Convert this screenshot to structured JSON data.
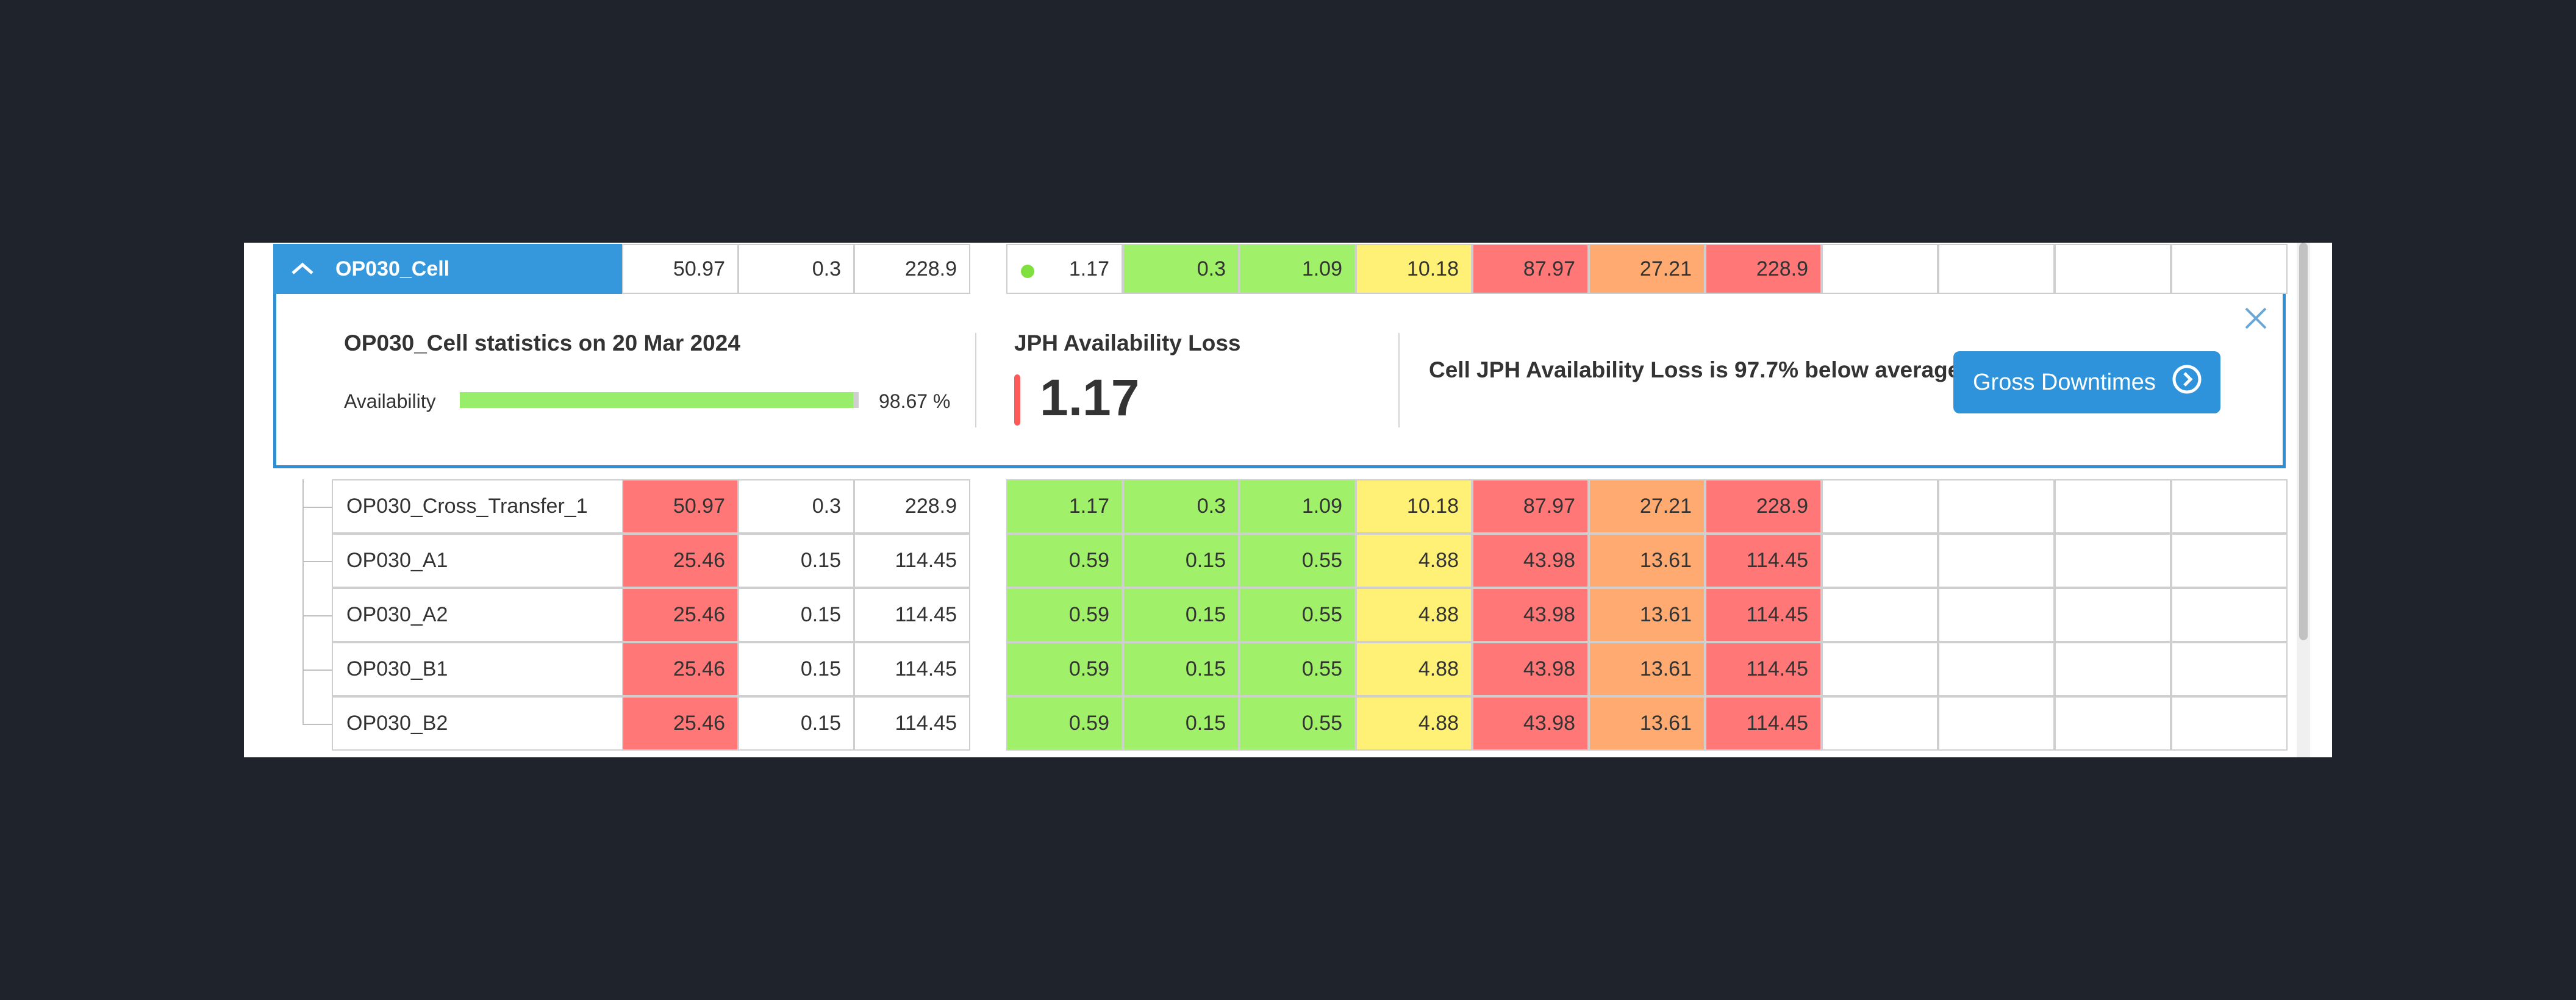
{
  "colors": {
    "green": "#a0f06a",
    "yellow": "#fff176",
    "red": "#ff7777",
    "orange": "#ffaa70",
    "accent": "#3598dc"
  },
  "header_row": {
    "name": "OP030_Cell",
    "left": [
      "50.97",
      "0.3",
      "228.9"
    ],
    "right": [
      {
        "v": "1.17",
        "c": "white",
        "dot": true
      },
      {
        "v": "0.3",
        "c": "green"
      },
      {
        "v": "1.09",
        "c": "green"
      },
      {
        "v": "10.18",
        "c": "yellow"
      },
      {
        "v": "87.97",
        "c": "red"
      },
      {
        "v": "27.21",
        "c": "orange"
      },
      {
        "v": "228.9",
        "c": "red"
      },
      {
        "v": "",
        "c": "white"
      },
      {
        "v": "",
        "c": "white"
      },
      {
        "v": "",
        "c": "white"
      },
      {
        "v": "",
        "c": "white"
      }
    ]
  },
  "stats": {
    "title": "OP030_Cell statistics on 20 Mar 2024",
    "availability_label": "Availability",
    "availability_value": "98.67 %",
    "availability_fraction": 0.9867,
    "jph_title": "JPH Availability Loss",
    "jph_value": "1.17",
    "cell_loss_text": "Cell JPH Availability Loss is 97.7% below average",
    "gross_button": "Gross Downtimes"
  },
  "rows": [
    {
      "name": "OP030_Cross_Transfer_1",
      "left": [
        {
          "v": "50.97",
          "c": "red"
        },
        {
          "v": "0.3",
          "c": "white"
        },
        {
          "v": "228.9",
          "c": "white"
        }
      ],
      "right": [
        {
          "v": "1.17",
          "c": "green"
        },
        {
          "v": "0.3",
          "c": "green"
        },
        {
          "v": "1.09",
          "c": "green"
        },
        {
          "v": "10.18",
          "c": "yellow"
        },
        {
          "v": "87.97",
          "c": "red"
        },
        {
          "v": "27.21",
          "c": "orange"
        },
        {
          "v": "228.9",
          "c": "red"
        },
        {
          "v": "",
          "c": "white"
        },
        {
          "v": "",
          "c": "white"
        },
        {
          "v": "",
          "c": "white"
        },
        {
          "v": "",
          "c": "white"
        }
      ]
    },
    {
      "name": "OP030_A1",
      "left": [
        {
          "v": "25.46",
          "c": "red"
        },
        {
          "v": "0.15",
          "c": "white"
        },
        {
          "v": "114.45",
          "c": "white"
        }
      ],
      "right": [
        {
          "v": "0.59",
          "c": "green"
        },
        {
          "v": "0.15",
          "c": "green"
        },
        {
          "v": "0.55",
          "c": "green"
        },
        {
          "v": "4.88",
          "c": "yellow"
        },
        {
          "v": "43.98",
          "c": "red"
        },
        {
          "v": "13.61",
          "c": "orange"
        },
        {
          "v": "114.45",
          "c": "red"
        },
        {
          "v": "",
          "c": "white"
        },
        {
          "v": "",
          "c": "white"
        },
        {
          "v": "",
          "c": "white"
        },
        {
          "v": "",
          "c": "white"
        }
      ]
    },
    {
      "name": "OP030_A2",
      "left": [
        {
          "v": "25.46",
          "c": "red"
        },
        {
          "v": "0.15",
          "c": "white"
        },
        {
          "v": "114.45",
          "c": "white"
        }
      ],
      "right": [
        {
          "v": "0.59",
          "c": "green"
        },
        {
          "v": "0.15",
          "c": "green"
        },
        {
          "v": "0.55",
          "c": "green"
        },
        {
          "v": "4.88",
          "c": "yellow"
        },
        {
          "v": "43.98",
          "c": "red"
        },
        {
          "v": "13.61",
          "c": "orange"
        },
        {
          "v": "114.45",
          "c": "red"
        },
        {
          "v": "",
          "c": "white"
        },
        {
          "v": "",
          "c": "white"
        },
        {
          "v": "",
          "c": "white"
        },
        {
          "v": "",
          "c": "white"
        }
      ]
    },
    {
      "name": "OP030_B1",
      "left": [
        {
          "v": "25.46",
          "c": "red"
        },
        {
          "v": "0.15",
          "c": "white"
        },
        {
          "v": "114.45",
          "c": "white"
        }
      ],
      "right": [
        {
          "v": "0.59",
          "c": "green"
        },
        {
          "v": "0.15",
          "c": "green"
        },
        {
          "v": "0.55",
          "c": "green"
        },
        {
          "v": "4.88",
          "c": "yellow"
        },
        {
          "v": "43.98",
          "c": "red"
        },
        {
          "v": "13.61",
          "c": "orange"
        },
        {
          "v": "114.45",
          "c": "red"
        },
        {
          "v": "",
          "c": "white"
        },
        {
          "v": "",
          "c": "white"
        },
        {
          "v": "",
          "c": "white"
        },
        {
          "v": "",
          "c": "white"
        }
      ]
    },
    {
      "name": "OP030_B2",
      "left": [
        {
          "v": "25.46",
          "c": "red"
        },
        {
          "v": "0.15",
          "c": "white"
        },
        {
          "v": "114.45",
          "c": "white"
        }
      ],
      "right": [
        {
          "v": "0.59",
          "c": "green"
        },
        {
          "v": "0.15",
          "c": "green"
        },
        {
          "v": "0.55",
          "c": "green"
        },
        {
          "v": "4.88",
          "c": "yellow"
        },
        {
          "v": "43.98",
          "c": "red"
        },
        {
          "v": "13.61",
          "c": "orange"
        },
        {
          "v": "114.45",
          "c": "red"
        },
        {
          "v": "",
          "c": "white"
        },
        {
          "v": "",
          "c": "white"
        },
        {
          "v": "",
          "c": "white"
        },
        {
          "v": "",
          "c": "white"
        }
      ]
    }
  ]
}
